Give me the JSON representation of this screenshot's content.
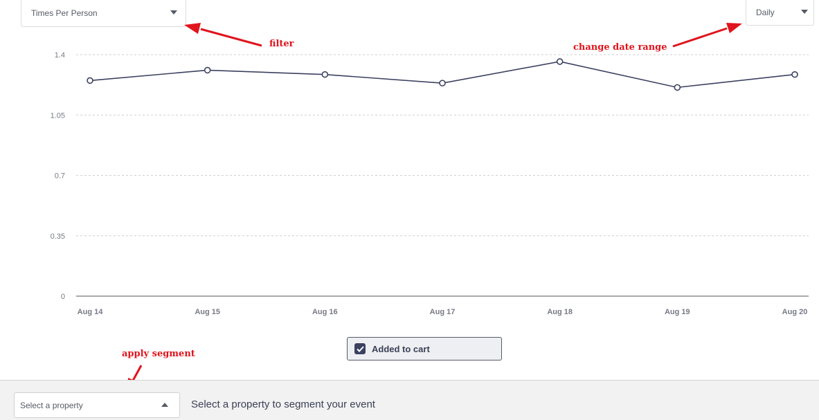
{
  "controls": {
    "metric_filter": {
      "value": "Times Per Person"
    },
    "date_range": {
      "value": "Daily"
    }
  },
  "annotations": {
    "filter": "filter",
    "date_range": "change date range",
    "segment": "apply segment"
  },
  "chart_data": {
    "type": "line",
    "title": "",
    "xlabel": "",
    "ylabel": "",
    "categories": [
      "Aug 14",
      "Aug 15",
      "Aug 16",
      "Aug 17",
      "Aug 18",
      "Aug 19",
      "Aug 20"
    ],
    "series": [
      {
        "name": "Added to cart",
        "values": [
          1.25,
          1.31,
          1.285,
          1.235,
          1.36,
          1.21,
          1.285
        ],
        "color": "#3b4160"
      }
    ],
    "y_ticks": [
      "0",
      "0.35",
      "0.7",
      "1.05",
      "1.4"
    ],
    "ylim": [
      0,
      1.4
    ],
    "grid": true,
    "legend_placement": "bottom-center"
  },
  "legend": {
    "label": "Added to cart",
    "checked": true
  },
  "segment": {
    "placeholder": "Select a property",
    "hint": "Select a property to segment your event"
  }
}
